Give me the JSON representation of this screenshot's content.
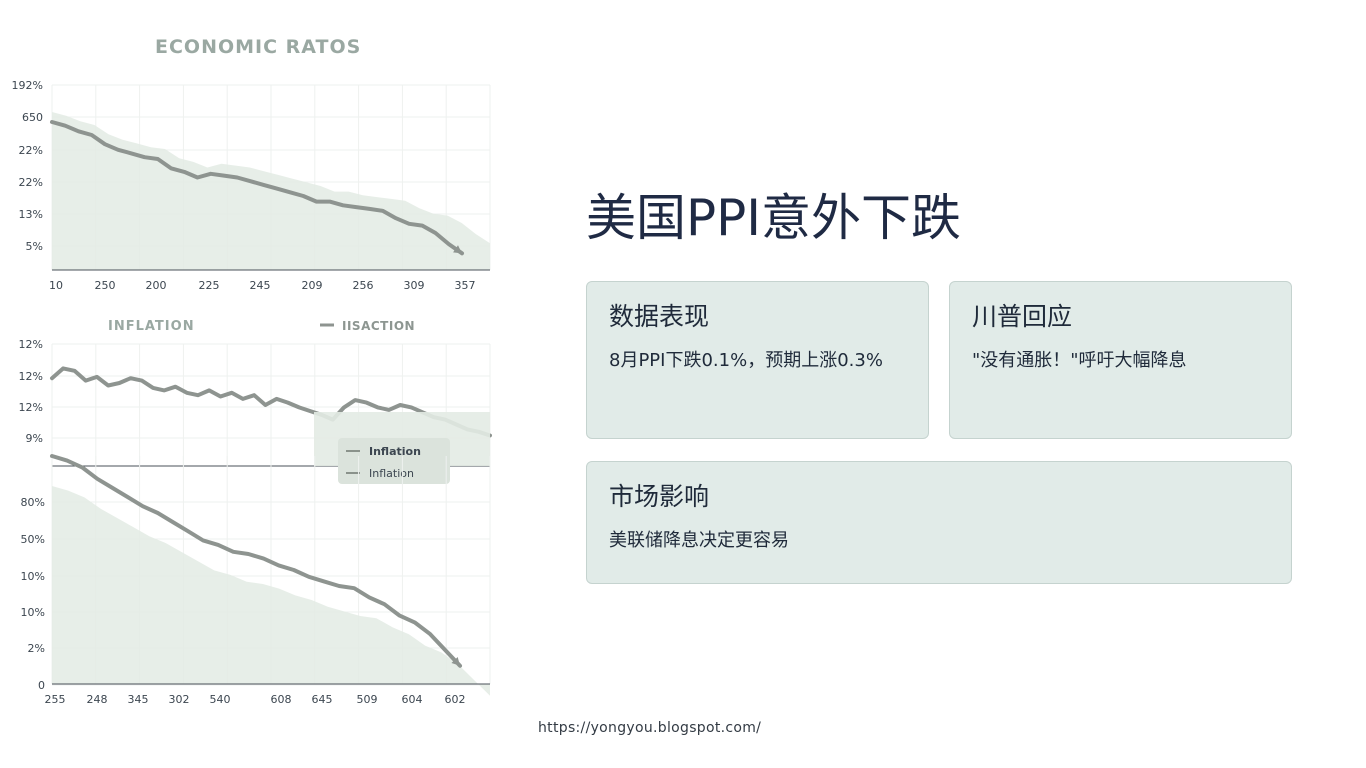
{
  "slide": {
    "title": "美国PPI意外下跌",
    "source_url": "https://yongyou.blogspot.com/"
  },
  "cards": [
    {
      "title": "数据表现",
      "body": "8月PPI下跌0.1%，预期上涨0.3%"
    },
    {
      "title": "川普回应",
      "body": "\"没有通胀！\"呼吁大幅降息"
    },
    {
      "title": "市场影响",
      "body": "美联储降息决定更容易"
    }
  ],
  "colors": {
    "line": "#8e9490",
    "area": "#e3ebe4",
    "card_bg": "#e1ebe8",
    "title": "#1f2a44",
    "chart_heading": "#9aa8a2"
  },
  "chart_data": [
    {
      "type": "area",
      "title": "ECONOMIC RATOS",
      "y_tick_labels": [
        "192%",
        "650",
        "22%",
        "22%",
        "13%",
        "5%"
      ],
      "x_tick_labels": [
        "10",
        "250",
        "200",
        "225",
        "245",
        "209",
        "256",
        "309",
        "357"
      ],
      "ylim": [
        0,
        100
      ],
      "grid": true,
      "series": [
        {
          "values": [
            80,
            78,
            75,
            73,
            68,
            65,
            63,
            61,
            60,
            55,
            53,
            50,
            52,
            51,
            50,
            48,
            46,
            44,
            42,
            40,
            37,
            37,
            35,
            34,
            33,
            32,
            28,
            25,
            24,
            20,
            14,
            9
          ]
        }
      ]
    },
    {
      "type": "line",
      "title": "INFLATION",
      "legend_top": "IISACTION",
      "y_tick_labels": [
        "12%",
        "12%",
        "12%",
        "9%"
      ],
      "legend": [
        "Inflation",
        "Inflation"
      ],
      "legend_position": "bottom-right",
      "ylim": [
        0,
        100
      ],
      "grid": true,
      "series": [
        {
          "values": [
            72,
            80,
            78,
            70,
            73,
            66,
            68,
            72,
            70,
            64,
            62,
            65,
            60,
            58,
            62,
            57,
            60,
            55,
            58,
            50,
            55,
            52,
            48,
            45,
            42,
            38,
            48,
            54,
            52,
            48,
            46,
            50,
            48,
            44,
            40,
            38,
            34,
            30,
            28,
            25
          ]
        }
      ]
    },
    {
      "type": "area",
      "y_tick_labels": [
        "80%",
        "50%",
        "10%",
        "10%",
        "2%",
        "0"
      ],
      "x_tick_labels": [
        "255",
        "248",
        "345",
        "302",
        "540",
        "608",
        "645",
        "509",
        "604",
        "602"
      ],
      "ylim": [
        0,
        100
      ],
      "grid": true,
      "series": [
        {
          "values": [
            100,
            98,
            95,
            90,
            86,
            82,
            78,
            75,
            71,
            67,
            63,
            61,
            58,
            57,
            55,
            52,
            50,
            47,
            45,
            43,
            42,
            38,
            35,
            30,
            27,
            22,
            15,
            8
          ]
        }
      ]
    }
  ]
}
